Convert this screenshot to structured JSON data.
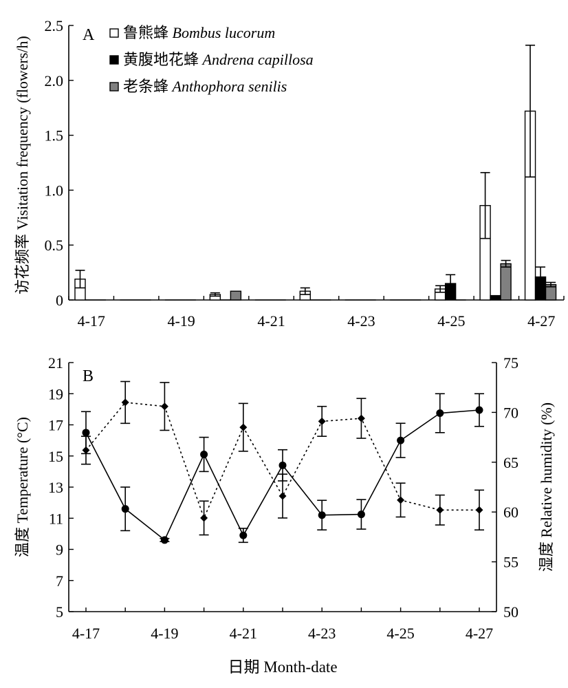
{
  "chart_data": [
    {
      "type": "bar",
      "panel_label": "A",
      "ylabel": "访花频率 Visitation frequency (flowers/h)",
      "ylim": [
        0,
        2.5
      ],
      "yticks": [
        "0",
        "0.5",
        "1.0",
        "1.5",
        "2.0",
        "2.5"
      ],
      "ytick_values": [
        0,
        0.5,
        1.0,
        1.5,
        2.0,
        2.5
      ],
      "x_tick_labels": [
        "4-17",
        "4-19",
        "4-21",
        "4-23",
        "4-25",
        "4-27"
      ],
      "categories": [
        "4-17",
        "4-18",
        "4-19",
        "4-20",
        "4-21",
        "4-22",
        "4-23",
        "4-24",
        "4-25",
        "4-26",
        "4-27"
      ],
      "legend_position": "top-left",
      "series": [
        {
          "name_cn": "鲁熊蜂",
          "name_latin": "Bombus lucorum",
          "fill": "#ffffff",
          "values": [
            0.19,
            0,
            0,
            0.05,
            0,
            0.08,
            0,
            0,
            0.1,
            0.86,
            1.72
          ],
          "errors": [
            0.08,
            0,
            0,
            0.015,
            0,
            0.03,
            0,
            0,
            0.03,
            0.3,
            0.6
          ]
        },
        {
          "name_cn": "黄腹地花蜂",
          "name_latin": "Andrena capillosa",
          "fill": "#000000",
          "values": [
            0,
            0,
            0,
            0,
            0,
            0,
            0,
            0,
            0.15,
            0.04,
            0.21
          ],
          "errors": [
            0,
            0,
            0,
            0,
            0,
            0,
            0,
            0,
            0.08,
            0,
            0.09
          ]
        },
        {
          "name_cn": "老条蜂",
          "name_latin": "Anthophora senilis",
          "fill": "#808080",
          "values": [
            0,
            0,
            0,
            0.08,
            0,
            0,
            0,
            0,
            0,
            0.33,
            0.14
          ],
          "errors": [
            0,
            0,
            0,
            0,
            0,
            0,
            0,
            0,
            0,
            0.03,
            0.02
          ]
        }
      ]
    },
    {
      "type": "line",
      "panel_label": "B",
      "xlabel": "日期 Month-date",
      "ylabel_left": "温度 Temperature (°C)",
      "ylabel_right": "湿度 Relative humidity (%)",
      "ylim_left": [
        5,
        21
      ],
      "yticks_left": [
        "5",
        "7",
        "9",
        "11",
        "13",
        "15",
        "17",
        "19",
        "21"
      ],
      "ytick_values_left": [
        5,
        7,
        9,
        11,
        13,
        15,
        17,
        19,
        21
      ],
      "ylim_right": [
        50,
        75
      ],
      "yticks_right": [
        "50",
        "55",
        "60",
        "65",
        "70",
        "75"
      ],
      "ytick_values_right": [
        50,
        55,
        60,
        65,
        70,
        75
      ],
      "x_tick_labels": [
        "4-17",
        "4-19",
        "4-21",
        "4-23",
        "4-25",
        "4-27"
      ],
      "categories": [
        "4-17",
        "4-18",
        "4-19",
        "4-20",
        "4-21",
        "4-22",
        "4-23",
        "4-24",
        "4-25",
        "4-26",
        "4-27"
      ],
      "series": [
        {
          "name": "温度 Temperature",
          "axis": "left",
          "line_style": "solid",
          "marker": "circle",
          "values": [
            16.5,
            11.6,
            9.6,
            15.1,
            9.9,
            14.4,
            11.2,
            11.25,
            16.0,
            17.75,
            17.95
          ],
          "errors": [
            1.35,
            1.4,
            0.1,
            1.1,
            0.45,
            1.0,
            0.95,
            0.95,
            1.1,
            1.25,
            1.05
          ]
        },
        {
          "name": "湿度 Relative humidity",
          "axis": "right",
          "line_style": "dotted",
          "marker": "diamond",
          "values": [
            66.2,
            71.0,
            70.6,
            59.4,
            68.5,
            61.6,
            69.1,
            69.4,
            61.2,
            60.2,
            60.2
          ],
          "errors": [
            1.4,
            2.1,
            2.4,
            1.7,
            2.4,
            2.2,
            1.5,
            2.0,
            1.7,
            1.5,
            2.0
          ]
        }
      ]
    }
  ]
}
